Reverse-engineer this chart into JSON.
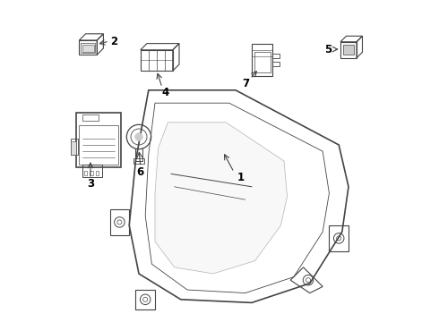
{
  "bg_color": "#ffffff",
  "line_color": "#444444",
  "figsize": [
    4.9,
    3.6
  ],
  "dpi": 100
}
